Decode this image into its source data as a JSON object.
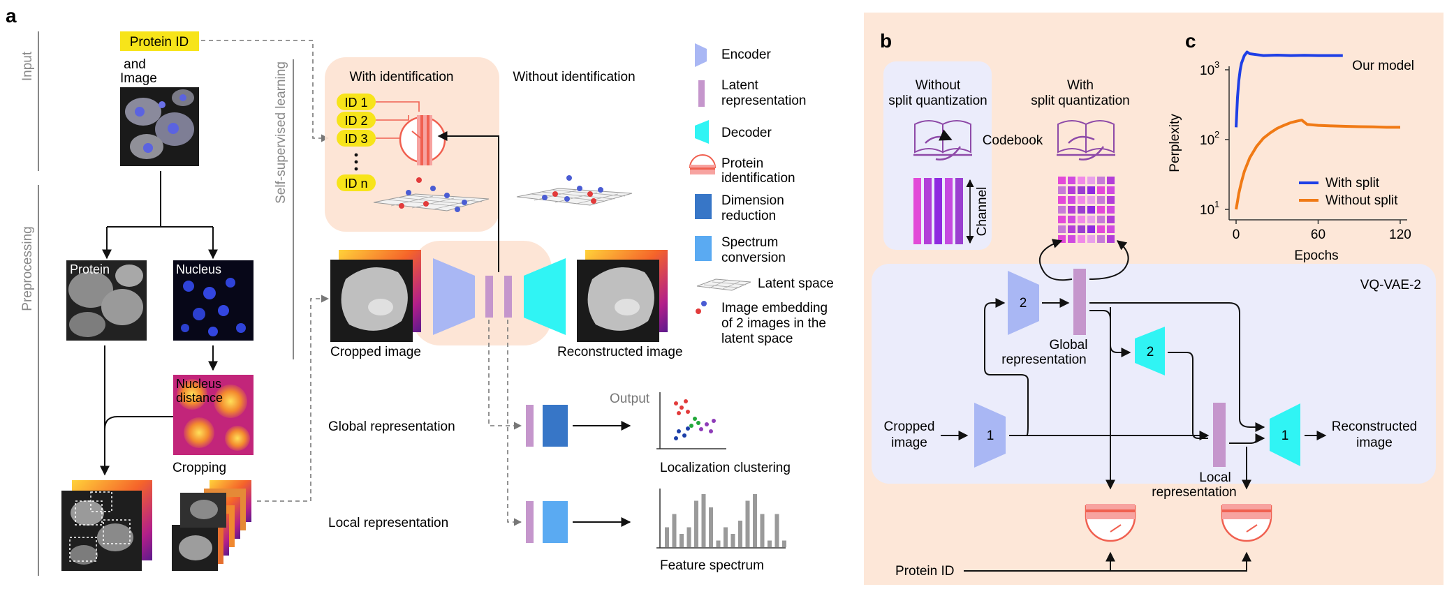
{
  "panels": {
    "a": "a",
    "b": "b",
    "c": "c"
  },
  "panel_a": {
    "section_input": "Input",
    "section_preprocessing": "Preprocessing",
    "section_ssl": "Self-supervised learning",
    "protein_id": "Protein ID",
    "and_image": [
      "and",
      "Image"
    ],
    "protein": "Protein",
    "nucleus": "Nucleus",
    "nucleus_distance": [
      "Nucleus",
      "distance"
    ],
    "cropping": "Cropping",
    "with_identification": "With identification",
    "without_identification": "Without identification",
    "ids": [
      "ID 1",
      "ID 2",
      "ID 3",
      "ID n"
    ],
    "cropped_image": "Cropped image",
    "reconstructed_image": "Reconstructed image",
    "global_representation": "Global representation",
    "local_representation": "Local representation",
    "output": "Output",
    "localization_clustering": "Localization clustering",
    "feature_spectrum": "Feature spectrum",
    "spectrum_bars": [
      3,
      5,
      2,
      3,
      7,
      8,
      6,
      1,
      3,
      2,
      4,
      7,
      8,
      5,
      1,
      5,
      1
    ]
  },
  "legend": {
    "encoder": "Encoder",
    "latent": [
      "Latent",
      "representation"
    ],
    "decoder": "Decoder",
    "protein_identification": [
      "Protein",
      "identification"
    ],
    "dimension_reduction": [
      "Dimension",
      "reduction"
    ],
    "spectrum_conversion": [
      "Spectrum",
      "conversion"
    ],
    "latent_space": "Latent space",
    "image_embedding": [
      "Image embedding",
      "of 2 images in the",
      "latent space"
    ]
  },
  "panel_b": {
    "without_split": [
      "Without",
      "split quantization"
    ],
    "with_split": [
      "With",
      "split quantization"
    ],
    "codebook": "Codebook",
    "channel": "Channel",
    "vqvae": "VQ-VAE-2",
    "encoder1": "1",
    "encoder2": "2",
    "decoder2": "2",
    "decoder1": "1",
    "global_representation": [
      "Global",
      "representation"
    ],
    "local_representation": [
      "Local",
      "representation"
    ],
    "cropped_image": [
      "Cropped",
      "image"
    ],
    "reconstructed_image": [
      "Reconstructed",
      "image"
    ],
    "protein_id": "Protein ID"
  },
  "panel_c": {
    "title": "Our model",
    "ylabel": "Perplexity",
    "xlabel": "Epochs",
    "xticks": [
      "0",
      "60",
      "120"
    ],
    "yticks": [
      {
        "base": "10",
        "exp": "1"
      },
      {
        "base": "10",
        "exp": "2"
      },
      {
        "base": "10",
        "exp": "3"
      }
    ]
  },
  "colors": {
    "orange_bg": "#fde7d8",
    "blue_bg": "#ebecfb",
    "encoder": "#a9b7f4",
    "decoder": "#30f4f4",
    "latent": "#c596cc",
    "dimension_reduction": "#3776c7",
    "spectrum_conversion": "#5aaaf2",
    "protein_id_yellow": "#f7e41a",
    "with_split": "#1e3fe6",
    "without_split": "#f07a15"
  },
  "chart_data": {
    "type": "line",
    "title": "Our model",
    "xlabel": "Epochs",
    "ylabel": "Perplexity",
    "xlim": [
      0,
      120
    ],
    "ylim": [
      10,
      2000
    ],
    "yscale": "log",
    "legend_position": "bottom-right",
    "series": [
      {
        "name": "With split",
        "color": "#1e3fe6",
        "x": [
          0,
          1,
          2,
          3,
          4,
          6,
          8,
          10,
          15,
          20,
          30,
          40,
          50,
          60,
          70,
          78
        ],
        "y": [
          150,
          400,
          700,
          1000,
          1250,
          1600,
          1800,
          1700,
          1650,
          1600,
          1620,
          1600,
          1610,
          1600,
          1600,
          1600
        ]
      },
      {
        "name": "Without split",
        "color": "#f07a15",
        "x": [
          0,
          1,
          2,
          4,
          6,
          10,
          15,
          20,
          25,
          30,
          35,
          40,
          45,
          48,
          52,
          60,
          70,
          80,
          90,
          100,
          110,
          120
        ],
        "y": [
          10,
          13,
          17,
          25,
          35,
          55,
          80,
          105,
          125,
          145,
          160,
          175,
          185,
          190,
          165,
          160,
          157,
          155,
          153,
          152,
          150,
          150
        ]
      }
    ]
  }
}
